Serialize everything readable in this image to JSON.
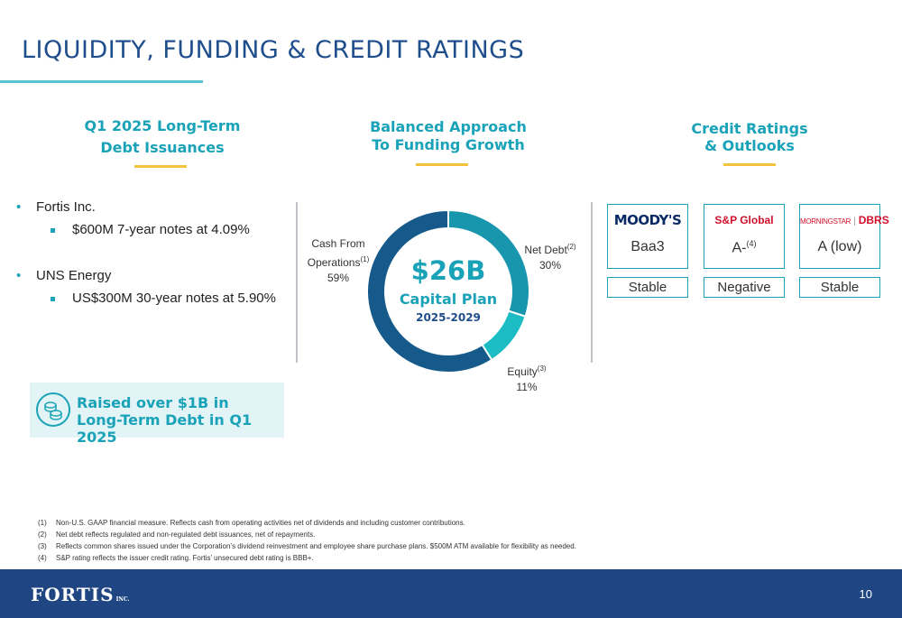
{
  "header": {
    "title": "LIQUIDITY, FUNDING & CREDIT RATINGS"
  },
  "left": {
    "heading_line1": "Q1 2025 Long-Term",
    "heading_line2": "Debt Issuances",
    "entities": [
      {
        "name": "Fortis Inc.",
        "detail": "$600M 7-year notes at 4.09%"
      },
      {
        "name": "UNS Energy",
        "detail": "US$300M 30-year notes at 5.90%"
      }
    ],
    "callout_line1": "Raised over $1B in",
    "callout_line2": "Long-Term Debt in Q1 2025",
    "callout_icon": "coins-icon"
  },
  "middle": {
    "heading_line1": "Balanced Approach",
    "heading_line2": "To Funding Growth",
    "center_amount": "$26B",
    "center_caption": "Capital Plan",
    "center_years": "2025-2029",
    "labels": {
      "cfo_line1": "Cash From",
      "cfo_line2": "Operations",
      "cfo_sup": "(1)",
      "cfo_pct": "59%",
      "debt_name": "Net Debt",
      "debt_sup": "(2)",
      "debt_pct": "30%",
      "equity_name": "Equity",
      "equity_sup": "(3)",
      "equity_pct": "11%"
    }
  },
  "chart_data": {
    "type": "pie",
    "categories": [
      "Net Debt",
      "Equity",
      "Cash From Operations"
    ],
    "values": [
      30,
      11,
      59
    ],
    "colors": [
      "#1896ae",
      "#1cbcc4",
      "#155a8a"
    ],
    "title": "$26B Capital Plan 2025-2029"
  },
  "right": {
    "heading_line1": "Credit Ratings",
    "heading_line2": "& Outlooks",
    "agencies": [
      {
        "name": "MOODY'S",
        "rating": "Baa3",
        "rating_sup": "",
        "outlook": "Stable"
      },
      {
        "name": "S&P Global",
        "rating": "A-",
        "rating_sup": "(4)",
        "outlook": "Negative"
      },
      {
        "name_a": "MORNINGSTAR",
        "name_b": "DBRS",
        "rating": "A (low)",
        "rating_sup": "",
        "outlook": "Stable"
      }
    ]
  },
  "footnotes": [
    {
      "num": "(1)",
      "text": "Non-U.S. GAAP financial measure. Reflects cash from operating activities net of dividends and including customer contributions."
    },
    {
      "num": "(2)",
      "text": "Net debt reflects regulated and non-regulated debt issuances, net of repayments."
    },
    {
      "num": "(3)",
      "text": "Reflects common shares issued under the Corporation’s dividend reinvestment and employee share purchase plans. $500M ATM available for flexibility as needed."
    },
    {
      "num": "(4)",
      "text": "S&P rating reflects the issuer credit rating. Fortis’ unsecured debt rating is BBB+."
    }
  ],
  "footer": {
    "logo": "FORTIS",
    "logo_suffix": "INC.",
    "page_number": "10"
  },
  "colors": {
    "title": "#1f4e8c",
    "accent": "#1aa3b8",
    "gold": "#f4c23c",
    "footer": "#1f4682"
  }
}
